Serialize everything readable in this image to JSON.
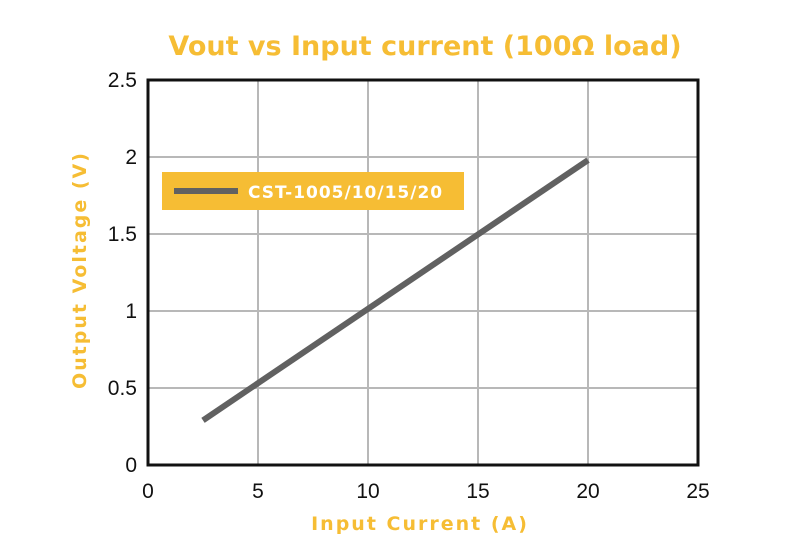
{
  "chart_data": {
    "type": "line",
    "title": "Vout vs Input current (100Ω load)",
    "xlabel": "Input Current (A)",
    "ylabel": "Output Voltage (V)",
    "xlim": [
      0,
      25
    ],
    "ylim": [
      0,
      2.5
    ],
    "xticks": [
      "0",
      "5",
      "10",
      "15",
      "20",
      "25"
    ],
    "yticks": [
      "0",
      "0.5",
      "1",
      "1.5",
      "2",
      "2.5"
    ],
    "grid": true,
    "legend_position": "upper-left",
    "series": [
      {
        "name": "CST-1005/10/15/20",
        "color": "#616161",
        "x": [
          2.5,
          20
        ],
        "y": [
          0.29,
          1.98
        ]
      }
    ]
  },
  "colors": {
    "accent": "#f6bd34",
    "grid": "#b8b8b8",
    "axis": "#111111"
  }
}
